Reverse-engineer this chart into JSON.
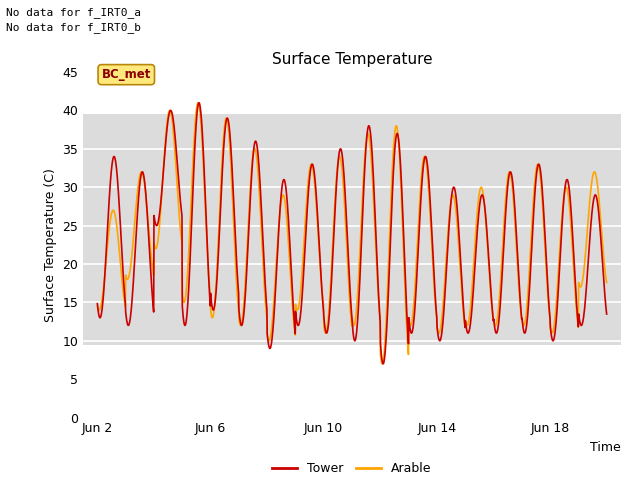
{
  "title": "Surface Temperature",
  "xlabel": "Time",
  "ylabel": "Surface Temperature (C)",
  "ylim": [
    0,
    45
  ],
  "yticks": [
    0,
    5,
    10,
    15,
    20,
    25,
    30,
    35,
    40,
    45
  ],
  "no_data_text": [
    "No data for f_IRT0_a",
    "No data for f_IRT0_b"
  ],
  "bc_met_label": "BC_met",
  "bc_met_bg": "#FFE87C",
  "bc_met_text_color": "#8B0000",
  "bc_met_edge_color": "#B8860B",
  "shade_band": [
    9.5,
    39.5
  ],
  "shade_color": "#DCDCDC",
  "tower_color": "#CC0000",
  "arable_color": "#FFA500",
  "legend_tower": "Tower",
  "legend_arable": "Arable",
  "plot_bg": "#FFFFFF",
  "fig_bg": "#FFFFFF",
  "grid_color": "#E0E0E0",
  "start_day": 2,
  "end_day": 20,
  "xtick_days": [
    2,
    6,
    10,
    14,
    18
  ],
  "n_cycles": 18,
  "n_pts_per_cycle": 96,
  "tower_peaks": [
    34,
    32,
    40,
    41,
    39,
    36,
    31,
    33,
    35,
    38,
    37,
    34,
    30,
    29,
    32,
    33,
    31,
    29
  ],
  "tower_troughs": [
    13,
    12,
    25,
    12,
    14,
    12,
    9,
    12,
    11,
    10,
    7,
    11,
    10,
    11,
    11,
    11,
    10,
    12
  ],
  "arable_peaks": [
    27,
    32,
    40,
    41,
    39,
    35,
    29,
    33,
    34,
    37,
    38,
    34,
    29,
    30,
    32,
    33,
    30,
    32
  ],
  "arable_troughs": [
    14,
    18,
    22,
    15,
    13,
    12,
    10,
    14,
    11,
    12,
    7,
    12,
    11,
    12,
    12,
    12,
    11,
    17
  ]
}
